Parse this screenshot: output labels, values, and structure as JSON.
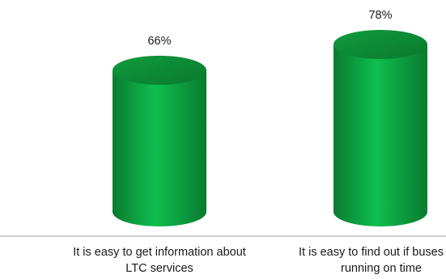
{
  "chart_data": {
    "type": "bar",
    "style": "cylinder",
    "categories": [
      "It is easy to get information about LTC services",
      "It is easy to find out if buses are running on time"
    ],
    "values": [
      66,
      78
    ],
    "value_labels": [
      "66%",
      "78%"
    ],
    "title": "",
    "xlabel": "",
    "ylabel": "",
    "ylim": [
      0,
      100
    ],
    "grid": false,
    "legend": "none",
    "colors": {
      "bar_mid": "#0ebf4f",
      "bar_edge": "#0a7a2f",
      "top_face": "#0f9a3c",
      "axis": "#bfbfbf"
    }
  }
}
